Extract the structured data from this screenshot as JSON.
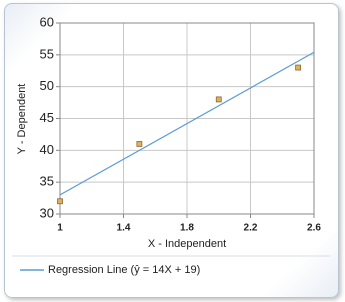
{
  "chart_data": {
    "type": "scatter",
    "x_label": "X - Independent",
    "y_label": "Y - Dependent",
    "xlim": [
      1,
      2.6
    ],
    "xticks": [
      1,
      1.4,
      1.8,
      2.2,
      2.6
    ],
    "ylim": [
      30,
      60
    ],
    "yticks": [
      30,
      35,
      40,
      45,
      50,
      55,
      60
    ],
    "grid": true,
    "series": [
      {
        "type": "scatter",
        "color": "#e0b060",
        "x": [
          1,
          1.5,
          2,
          2.5
        ],
        "values": [
          32,
          41,
          48,
          53
        ]
      },
      {
        "type": "line",
        "name": "Regression Line (ŷ = 14X + 19)",
        "color": "#5b9bd5",
        "x": [
          1,
          2.6
        ],
        "values": [
          33,
          55.4
        ]
      }
    ]
  }
}
